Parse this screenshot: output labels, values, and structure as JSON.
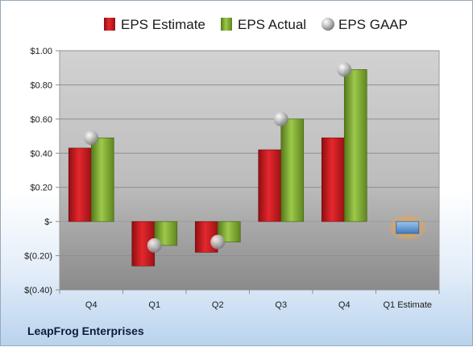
{
  "company": "LeapFrog Enterprises",
  "chart_data": {
    "type": "bar",
    "title": "",
    "xlabel": "",
    "ylabel": "",
    "ylim": [
      -0.4,
      1.0
    ],
    "yticks": [
      1.0,
      0.8,
      0.6,
      0.4,
      0.2,
      0,
      -0.2,
      -0.4
    ],
    "ytick_labels": [
      "$1.00",
      "$0.80",
      "$0.60",
      "$0.40",
      "$0.20",
      "$-",
      "$(0.20)",
      "$(0.40)"
    ],
    "categories": [
      "Q4",
      "Q1",
      "Q2",
      "Q3",
      "Q4",
      "Q1 Estimate"
    ],
    "series": [
      {
        "name": "EPS Estimate",
        "color": "#c41a1f",
        "values": [
          0.43,
          -0.26,
          -0.18,
          0.42,
          0.49,
          null
        ]
      },
      {
        "name": "EPS Actual",
        "color": "#7aa62a",
        "values": [
          0.49,
          -0.14,
          -0.12,
          0.6,
          0.89,
          null
        ]
      },
      {
        "name": "EPS GAAP",
        "color": "#a8a8a8",
        "marker": "sphere",
        "values": [
          0.49,
          -0.14,
          -0.12,
          0.6,
          0.89,
          null
        ]
      }
    ],
    "forecast": {
      "category": "Q1 Estimate",
      "value": -0.07,
      "color": "#5b9bd5",
      "glow": "#f5a040"
    },
    "legend": {
      "position": "top"
    },
    "grid": true
  }
}
